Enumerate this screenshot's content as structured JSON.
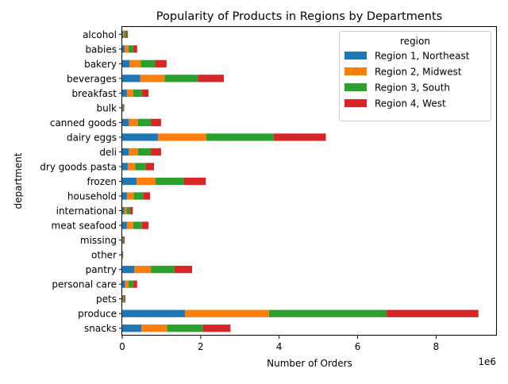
{
  "chart_data": {
    "type": "bar",
    "orientation": "horizontal",
    "stacked": true,
    "title": "Popularity of Products in Regions by Departments",
    "xlabel": "Number of Orders",
    "ylabel": "department",
    "x_offset_text": "1e6",
    "xlim": [
      0,
      9.55
    ],
    "xticks": [
      0,
      2,
      4,
      6,
      8
    ],
    "grid": false,
    "legend": {
      "title": "region",
      "placement": "top-right"
    },
    "categories": [
      "alcohol",
      "babies",
      "bakery",
      "beverages",
      "breakfast",
      "bulk",
      "canned goods",
      "dairy eggs",
      "deli",
      "dry goods pasta",
      "frozen",
      "household",
      "international",
      "meat seafood",
      "missing",
      "other",
      "pantry",
      "personal care",
      "pets",
      "produce",
      "snacks"
    ],
    "series": [
      {
        "name": "Region 1, Northeast",
        "color": "#1f77b4",
        "values": [
          0.02,
          0.06,
          0.19,
          0.46,
          0.12,
          0.01,
          0.17,
          0.91,
          0.17,
          0.14,
          0.37,
          0.12,
          0.05,
          0.12,
          0.01,
          0.005,
          0.31,
          0.07,
          0.01,
          1.6,
          0.49
        ]
      },
      {
        "name": "Region 2, Midwest",
        "color": "#ff7f0e",
        "values": [
          0.03,
          0.1,
          0.28,
          0.62,
          0.16,
          0.01,
          0.23,
          1.23,
          0.23,
          0.19,
          0.48,
          0.17,
          0.06,
          0.16,
          0.01,
          0.005,
          0.42,
          0.09,
          0.02,
          2.14,
          0.65
        ]
      },
      {
        "name": "Region 3, South",
        "color": "#2ca02c",
        "values": [
          0.05,
          0.12,
          0.37,
          0.85,
          0.22,
          0.02,
          0.33,
          1.72,
          0.33,
          0.27,
          0.72,
          0.24,
          0.09,
          0.22,
          0.02,
          0.01,
          0.6,
          0.12,
          0.03,
          3.0,
          0.92
        ]
      },
      {
        "name": "Region 4, West",
        "color": "#d62728",
        "values": [
          0.04,
          0.1,
          0.29,
          0.66,
          0.17,
          0.01,
          0.26,
          1.33,
          0.26,
          0.21,
          0.56,
          0.18,
          0.07,
          0.17,
          0.02,
          0.005,
          0.45,
          0.1,
          0.02,
          2.34,
          0.7
        ]
      }
    ]
  }
}
